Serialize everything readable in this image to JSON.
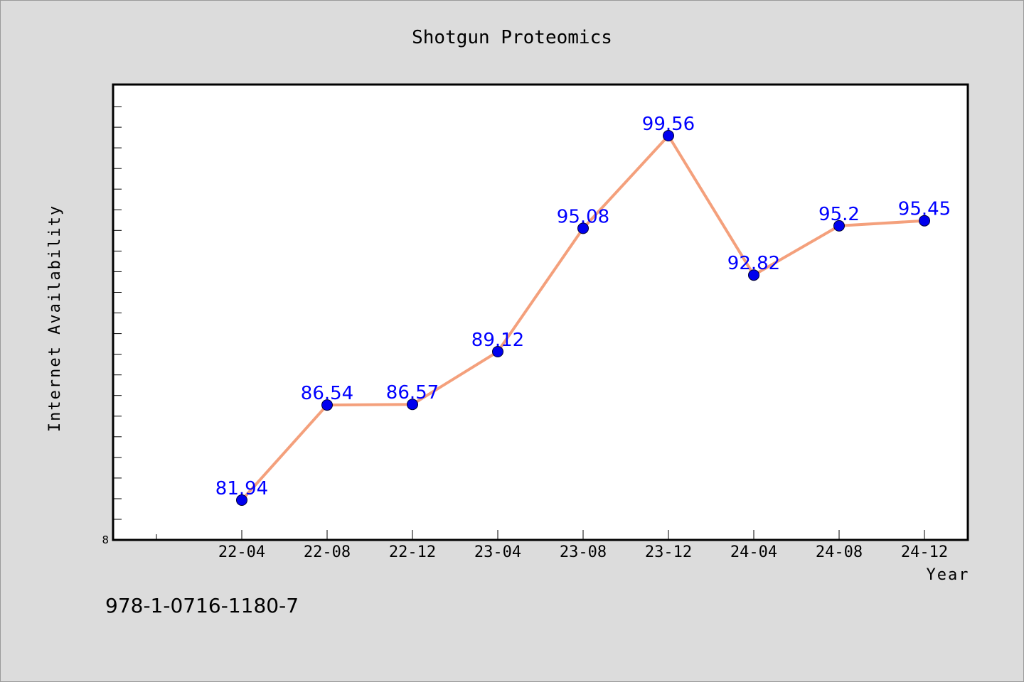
{
  "chart_data": {
    "type": "line",
    "title": "Shotgun Proteomics",
    "xlabel": "Year",
    "ylabel": "Internet Availability",
    "categories": [
      "22-04",
      "22-08",
      "22-12",
      "23-04",
      "23-08",
      "23-12",
      "24-04",
      "24-08",
      "24-12"
    ],
    "series": [
      {
        "values": [
          81.94,
          86.54,
          86.57,
          89.12,
          95.08,
          99.56,
          92.82,
          95.2,
          95.45
        ],
        "labels": [
          "81.94",
          "86.54",
          "86.57",
          "89.12",
          "95.08",
          "99.56",
          "92.82",
          "95.2",
          "95.45"
        ]
      }
    ],
    "y_tick_labels": [
      "8"
    ],
    "ylim": [
      76,
      98
    ],
    "grid": false,
    "line_color": "#f4a07c",
    "marker_color": "#0000ee",
    "label_color": "#0000ff"
  },
  "footnote": "978-1-0716-1180-7"
}
